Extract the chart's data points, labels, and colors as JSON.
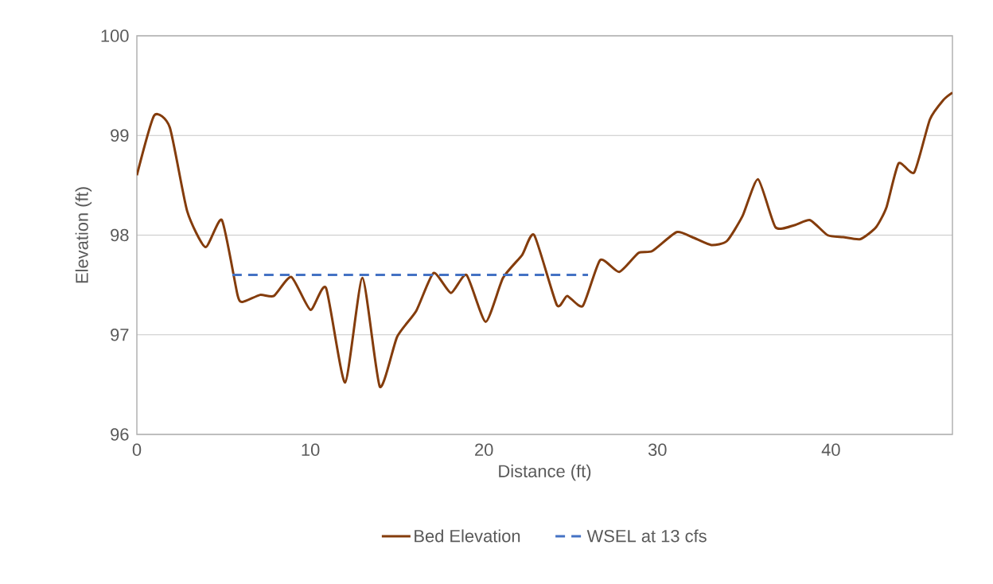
{
  "chart_data": {
    "type": "line",
    "xlabel": "Distance (ft)",
    "ylabel": "Elevation (ft)",
    "xlim": [
      0,
      47
    ],
    "xticks": [
      0,
      10,
      20,
      30,
      40
    ],
    "ylim": [
      96,
      100
    ],
    "yticks": [
      96,
      97,
      98,
      99,
      100
    ],
    "grid": "y",
    "legend": "bottom",
    "marker": "none",
    "series": [
      {
        "name": "Bed Elevation",
        "color": "#843c0c",
        "line_style": "solid",
        "x": [
          0,
          1.0,
          1.9,
          2.9,
          3.95,
          4.9,
          5.8,
          6.1,
          7.1,
          7.9,
          8.9,
          10.0,
          10.9,
          12.0,
          13.0,
          14.0,
          15.0,
          16.1,
          17.1,
          18.1,
          19.0,
          20.1,
          21.1,
          22.2,
          22.9,
          24.2,
          24.8,
          25.7,
          26.7,
          27.8,
          28.9,
          29.7,
          31.1,
          32.0,
          33.1,
          34.0,
          34.9,
          35.8,
          36.8,
          37.9,
          38.8,
          39.8,
          40.7,
          41.7,
          42.6,
          43.2,
          43.9,
          44.8,
          45.7,
          46.5,
          47.0
        ],
        "values": [
          98.6,
          99.2,
          99.08,
          98.24,
          97.88,
          98.15,
          97.4,
          97.33,
          97.4,
          97.39,
          97.58,
          97.25,
          97.47,
          96.52,
          97.57,
          96.48,
          96.98,
          97.24,
          97.62,
          97.42,
          97.6,
          97.13,
          97.57,
          97.8,
          98.0,
          97.3,
          97.39,
          97.29,
          97.75,
          97.63,
          97.82,
          97.84,
          98.03,
          97.98,
          97.9,
          97.94,
          98.19,
          98.56,
          98.08,
          98.1,
          98.15,
          98.0,
          97.98,
          97.96,
          98.08,
          98.28,
          98.72,
          98.63,
          99.16,
          99.36,
          99.43
        ]
      },
      {
        "name": "WSEL at 13 cfs",
        "color": "#4472c4",
        "line_style": "dashed",
        "x": [
          5.5,
          26.0
        ],
        "values": [
          97.6,
          97.6
        ]
      }
    ]
  }
}
